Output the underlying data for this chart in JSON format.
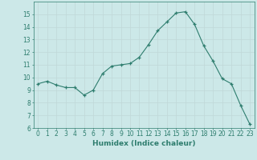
{
  "xlabel": "Humidex (Indice chaleur)",
  "x_values": [
    0,
    1,
    2,
    3,
    4,
    5,
    6,
    7,
    8,
    9,
    10,
    11,
    12,
    13,
    14,
    15,
    16,
    17,
    18,
    19,
    20,
    21,
    22,
    23
  ],
  "y_values": [
    9.5,
    9.7,
    9.4,
    9.2,
    9.2,
    8.6,
    9.0,
    10.3,
    10.9,
    11.0,
    11.1,
    11.6,
    12.6,
    13.7,
    14.4,
    15.1,
    15.2,
    14.2,
    12.5,
    11.3,
    9.9,
    9.5,
    7.8,
    6.3
  ],
  "ylim": [
    6,
    16
  ],
  "xlim": [
    -0.5,
    23.5
  ],
  "yticks": [
    6,
    7,
    8,
    9,
    10,
    11,
    12,
    13,
    14,
    15
  ],
  "xticks": [
    0,
    1,
    2,
    3,
    4,
    5,
    6,
    7,
    8,
    9,
    10,
    11,
    12,
    13,
    14,
    15,
    16,
    17,
    18,
    19,
    20,
    21,
    22,
    23
  ],
  "line_color": "#2e7d6e",
  "marker_color": "#2e7d6e",
  "bg_color": "#cce8e8",
  "grid_color": "#c0d8d8",
  "axis_label_color": "#2e7d6e",
  "tick_label_color": "#2e7d6e",
  "xlabel_fontsize": 6.5,
  "tick_fontsize": 5.5
}
